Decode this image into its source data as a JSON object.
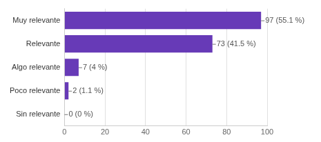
{
  "chart_data": {
    "type": "bar",
    "orientation": "horizontal",
    "categories": [
      "Muy relevante",
      "Relevante",
      "Algo relevante",
      "Poco relevante",
      "Sin relevante"
    ],
    "values": [
      97,
      73,
      7,
      2,
      0
    ],
    "value_labels": [
      "97 (55.1 %)",
      "73 (41.5 %)",
      "7 (4 %)",
      "2 (1.1 %)",
      "0 (0 %)"
    ],
    "data_labels": true,
    "color": "#673ab7",
    "xlim": [
      0,
      100
    ],
    "xticks": [
      0,
      20,
      40,
      60,
      80,
      100
    ],
    "grid": true
  }
}
